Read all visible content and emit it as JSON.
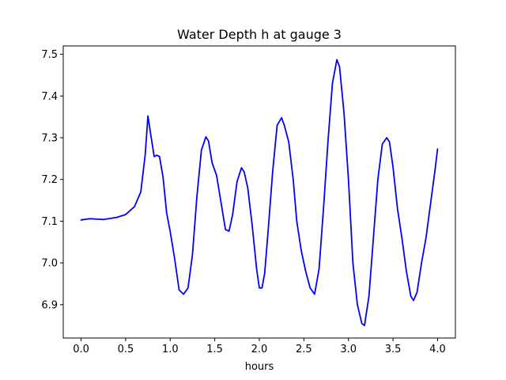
{
  "chart_data": {
    "type": "line",
    "title": "Water Depth h at gauge 3",
    "xlabel": "hours",
    "ylabel": "",
    "xlim": [
      -0.2,
      4.2
    ],
    "ylim": [
      6.82,
      7.52
    ],
    "grid": false,
    "line_color": "#0000ff",
    "x_ticks": [
      0.0,
      0.5,
      1.0,
      1.5,
      2.0,
      2.5,
      3.0,
      3.5,
      4.0
    ],
    "x_tick_labels": [
      "0.0",
      "0.5",
      "1.0",
      "1.5",
      "2.0",
      "2.5",
      "3.0",
      "3.5",
      "4.0"
    ],
    "y_ticks": [
      6.9,
      7.0,
      7.1,
      7.2,
      7.3,
      7.4,
      7.5
    ],
    "y_tick_labels": [
      "6.9",
      "7.0",
      "7.1",
      "7.2",
      "7.3",
      "7.4",
      "7.5"
    ],
    "series": [
      {
        "name": "",
        "x": [
          0.0,
          0.1,
          0.25,
          0.4,
          0.5,
          0.6,
          0.67,
          0.72,
          0.75,
          0.78,
          0.82,
          0.85,
          0.88,
          0.92,
          0.96,
          1.0,
          1.05,
          1.1,
          1.15,
          1.2,
          1.25,
          1.3,
          1.35,
          1.4,
          1.43,
          1.47,
          1.52,
          1.57,
          1.62,
          1.66,
          1.7,
          1.75,
          1.8,
          1.83,
          1.87,
          1.92,
          1.97,
          2.0,
          2.03,
          2.06,
          2.1,
          2.15,
          2.2,
          2.25,
          2.28,
          2.33,
          2.38,
          2.42,
          2.47,
          2.52,
          2.57,
          2.62,
          2.67,
          2.72,
          2.77,
          2.82,
          2.87,
          2.9,
          2.95,
          3.0,
          3.05,
          3.1,
          3.15,
          3.18,
          3.23,
          3.28,
          3.33,
          3.38,
          3.43,
          3.46,
          3.5,
          3.55,
          3.6,
          3.65,
          3.7,
          3.73,
          3.77,
          3.82,
          3.87,
          3.92,
          3.97,
          4.0
        ],
        "y": [
          7.103,
          7.106,
          7.104,
          7.109,
          7.116,
          7.135,
          7.17,
          7.26,
          7.352,
          7.31,
          7.255,
          7.258,
          7.255,
          7.205,
          7.12,
          7.075,
          7.01,
          6.935,
          6.925,
          6.94,
          7.02,
          7.16,
          7.27,
          7.302,
          7.292,
          7.24,
          7.21,
          7.145,
          7.08,
          7.076,
          7.115,
          7.195,
          7.228,
          7.218,
          7.18,
          7.09,
          6.985,
          6.94,
          6.94,
          6.975,
          7.08,
          7.22,
          7.33,
          7.348,
          7.33,
          7.29,
          7.2,
          7.1,
          7.03,
          6.98,
          6.94,
          6.925,
          6.985,
          7.13,
          7.29,
          7.43,
          7.487,
          7.47,
          7.36,
          7.2,
          7.0,
          6.9,
          6.855,
          6.85,
          6.92,
          7.06,
          7.2,
          7.285,
          7.3,
          7.29,
          7.23,
          7.13,
          7.06,
          6.98,
          6.92,
          6.91,
          6.93,
          7.0,
          7.06,
          7.14,
          7.22,
          7.273
        ]
      }
    ]
  }
}
